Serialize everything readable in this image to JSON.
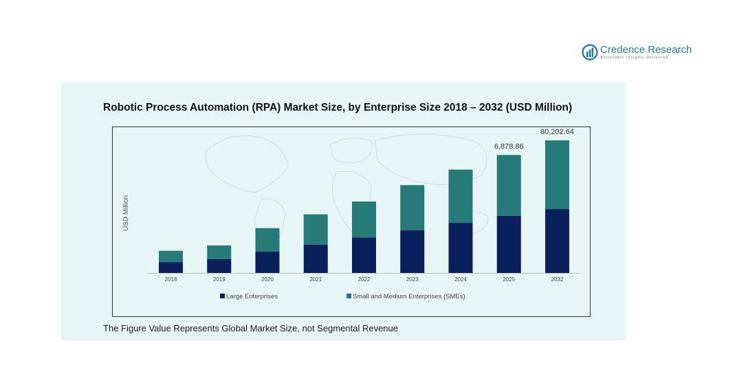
{
  "brand": {
    "name": "Credence Research",
    "tagline": "Actionable Insights Delivered",
    "accent": "#2b7a9b"
  },
  "chart_data": {
    "type": "bar",
    "stacked": true,
    "title": "Robotic Process Automation (RPA) Market Size, by Enterprise Size 2018 – 2032 (USD Million)",
    "xlabel": "",
    "ylabel": "USD Million",
    "categories": [
      "2018",
      "2019",
      "2020",
      "2021",
      "2022",
      "2023",
      "2024",
      "2025",
      "2032"
    ],
    "series": [
      {
        "name": "Large Enterprises",
        "color": "#0a1f5c",
        "values": [
          2.4,
          3.1,
          4.8,
          6.4,
          8.0,
          9.6,
          11.3,
          12.9,
          14.4
        ]
      },
      {
        "name": "Small and Medium Enterprises (SMEs)",
        "color": "#267a78",
        "values": [
          2.6,
          3.1,
          5.3,
          6.8,
          8.1,
          10.2,
          12.0,
          13.7,
          15.5
        ]
      }
    ],
    "data_labels": [
      {
        "category": "2025",
        "text": "6,878.86"
      },
      {
        "category": "2032",
        "text": "80,202.64"
      }
    ],
    "legend_position": "bottom",
    "grid": false,
    "ylim": [
      0,
      31
    ]
  },
  "footnote": "The Figure Value Represents Global Market Size, not Segmental Revenue"
}
